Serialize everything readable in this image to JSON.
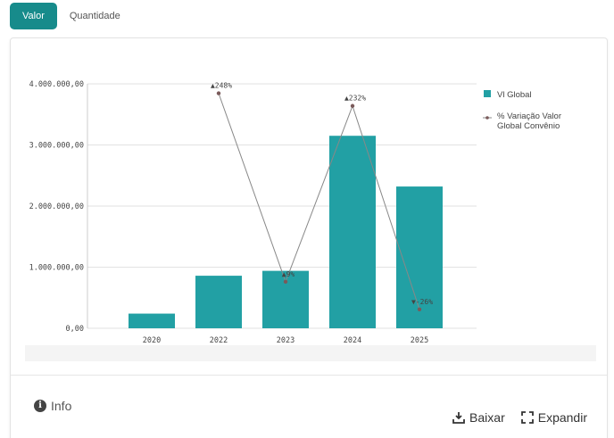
{
  "tabs": [
    {
      "label": "Valor",
      "active": true
    },
    {
      "label": "Quantidade",
      "active": false
    }
  ],
  "footer": {
    "info_label": "Info",
    "download_label": "Baixar",
    "expand_label": "Expandir"
  },
  "colors": {
    "accent": "#178b8b",
    "bar": "#22a0a4",
    "line": "#888888",
    "marker": "#7a5a5a"
  },
  "chart_data": {
    "type": "bar",
    "categories": [
      "2020",
      "2022",
      "2023",
      "2024",
      "2025"
    ],
    "series": [
      {
        "name": "Vl Global",
        "type": "bar",
        "values": [
          240000,
          860000,
          940000,
          3150000,
          2320000
        ]
      },
      {
        "name": "% Variação Valor Global Convênio",
        "type": "line",
        "values": [
          null,
          248,
          9,
          232,
          -26
        ],
        "labels": [
          "",
          "▲248%",
          "▲9%",
          "▲232%",
          "▼-26%"
        ]
      }
    ],
    "y_ticks": [
      "0,00",
      "1.000.000,00",
      "2.000.000,00",
      "3.000.000,00",
      "4.000.000,00"
    ],
    "ylim": [
      0,
      4000000
    ],
    "line_ylim": [
      -50,
      260
    ],
    "legend": [
      "Vl Global",
      "% Variação Valor Global Convênio"
    ],
    "legend_position": "top-right",
    "grid": true
  }
}
